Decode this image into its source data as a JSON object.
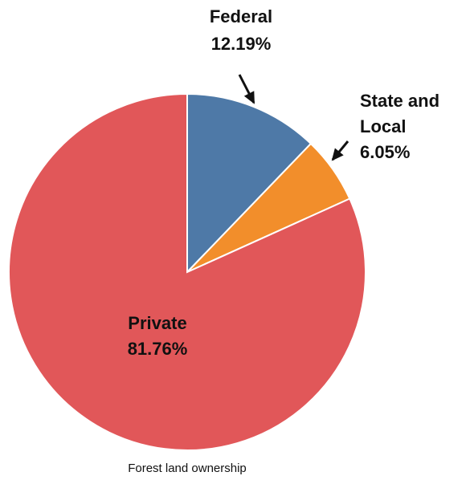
{
  "chart_data": {
    "type": "pie",
    "caption": "Forest land ownership",
    "start_angle_deg": 0,
    "direction": "clockwise",
    "slices": [
      {
        "label_lines": [
          "Federal",
          "12.19%"
        ],
        "value": 12.19,
        "color": "#4e79a7"
      },
      {
        "label_lines": [
          "State and",
          "Local",
          "6.05%"
        ],
        "value": 6.05,
        "color": "#f28e2b"
      },
      {
        "label_lines": [
          "Private",
          "81.76%"
        ],
        "value": 81.76,
        "color": "#e15759"
      }
    ]
  }
}
